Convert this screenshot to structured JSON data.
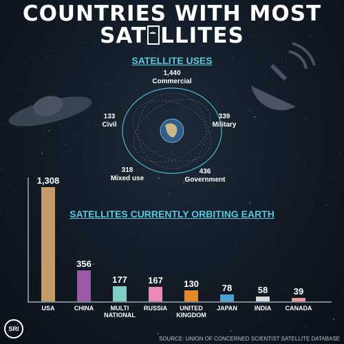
{
  "header": {
    "title_line1": "COUNTRIES WITH MOST",
    "title_line2_a": "SAT",
    "title_line2_b": "LLITES"
  },
  "uses": {
    "title": "SATELLITE USES",
    "items": [
      {
        "value": "1,440",
        "label": "Commercial"
      },
      {
        "value": "339",
        "label": "Military"
      },
      {
        "value": "436",
        "label": "Government"
      },
      {
        "value": "318",
        "label": "Mixed use"
      },
      {
        "value": "133",
        "label": "Civil"
      }
    ]
  },
  "chart_data": {
    "type": "bar",
    "title": "SATELLITES CURRENTLY ORBITING EARTH",
    "categories": [
      "USA",
      "CHINA",
      "MULTI NATIONAL",
      "RUSSIA",
      "UNITED KINGDOM",
      "JAPAN",
      "INDIA",
      "CANADA"
    ],
    "values": [
      1308,
      356,
      177,
      167,
      130,
      78,
      58,
      39
    ],
    "value_labels": [
      "1,308",
      "356",
      "177",
      "167",
      "130",
      "78",
      "58",
      "39"
    ],
    "colors": [
      "#c79a6b",
      "#9b5aa6",
      "#7fcfc4",
      "#e98ab8",
      "#e38b2b",
      "#4aa3cf",
      "#d8d8d8",
      "#e59a98"
    ],
    "ylim": [
      0,
      1308
    ]
  },
  "source": "SOURCE: UNION OF CONCERNED SCIENTIST SATELLITE DATABASE",
  "logo": "SRI"
}
